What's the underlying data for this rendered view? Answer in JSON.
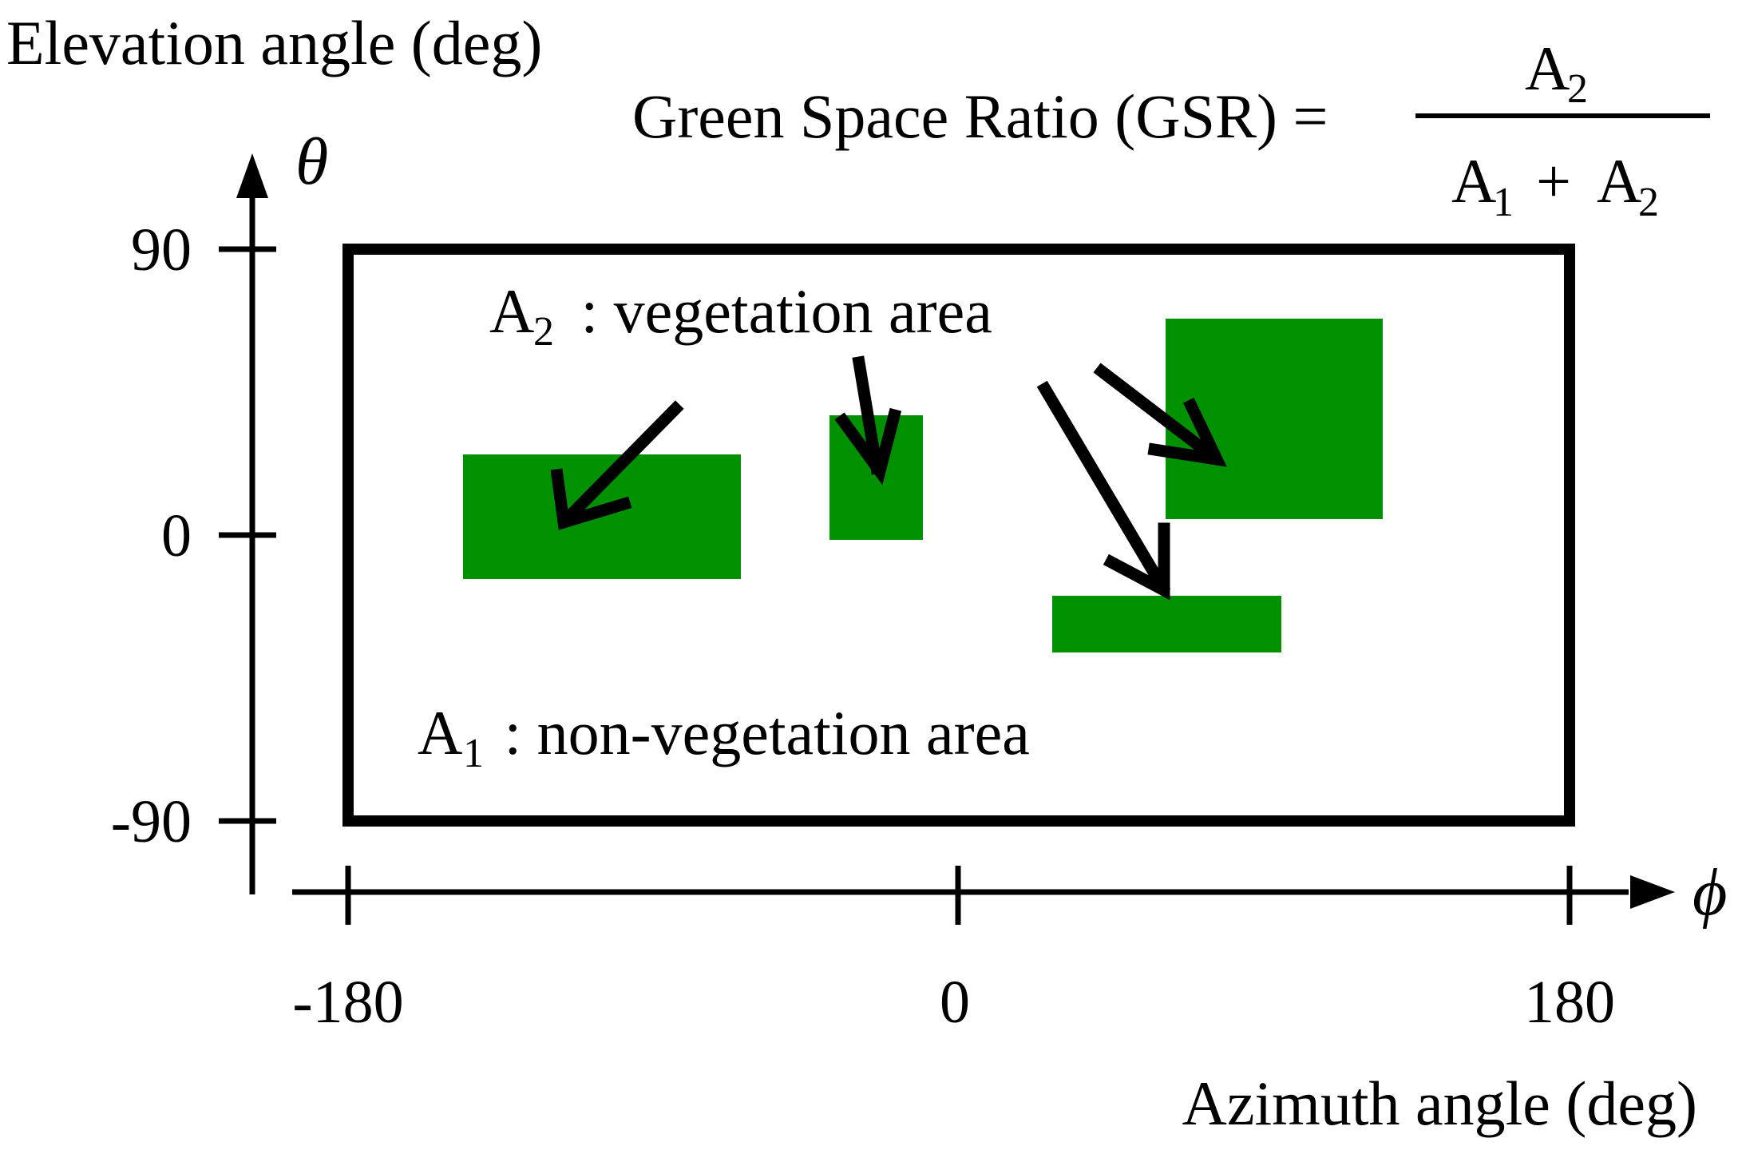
{
  "y_axis": {
    "label": "Elevation angle (deg)",
    "symbol": "θ",
    "ticks": [
      "90",
      "0",
      "-90"
    ]
  },
  "x_axis": {
    "label": "Azimuth angle (deg)",
    "symbol": "ϕ",
    "ticks": [
      "-180",
      "0",
      "180"
    ]
  },
  "formula": {
    "lhs": "Green Space Ratio (GSR) =",
    "numerator": {
      "base": "A",
      "sub": "2"
    },
    "denominator": {
      "term1": {
        "base": "A",
        "sub": "1"
      },
      "operator": "+",
      "term2": {
        "base": "A",
        "sub": "2"
      }
    }
  },
  "labels": {
    "vegetation": {
      "base": "A",
      "sub": "2",
      "text": " : vegetation area"
    },
    "non_vegetation": {
      "base": "A",
      "sub": "1",
      "text": " : non-vegetation area"
    }
  },
  "colors": {
    "vegetation": "#009100",
    "frame": "#000000"
  }
}
